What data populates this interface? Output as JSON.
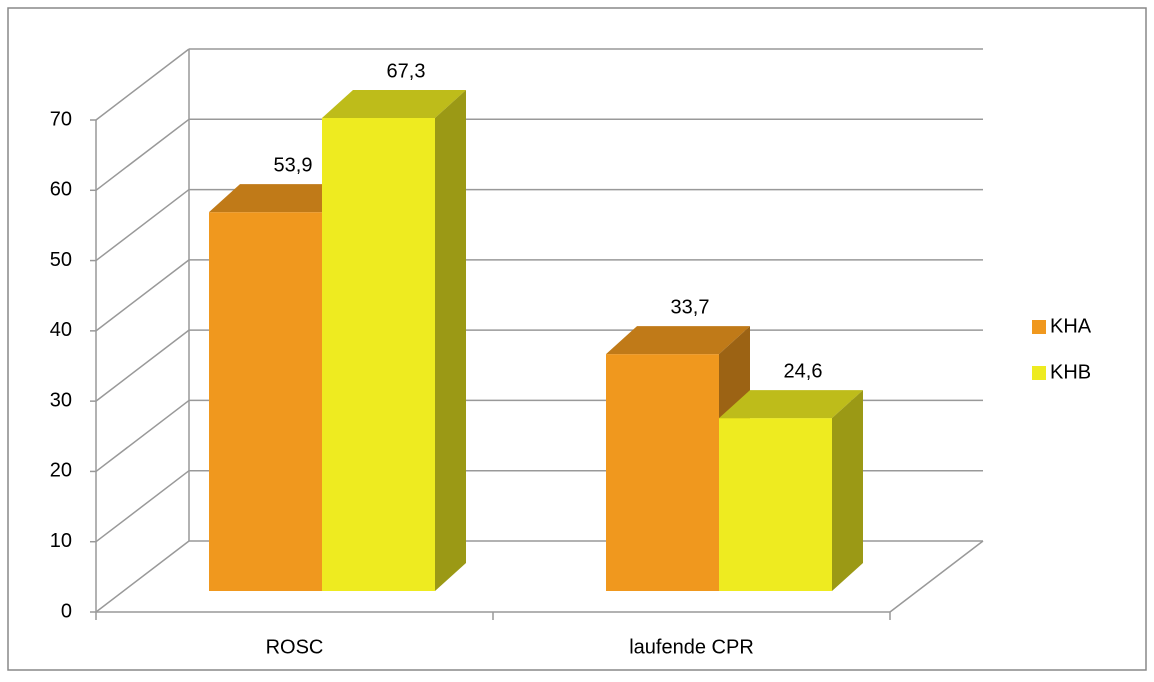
{
  "chart_data": {
    "type": "bar3d",
    "categories": [
      "ROSC",
      "laufende CPR"
    ],
    "series": [
      {
        "name": "KHA",
        "color": "#F0981E",
        "values": [
          53.9,
          33.7
        ],
        "value_labels": [
          "53,9",
          "33,7"
        ]
      },
      {
        "name": "KHB",
        "color": "#EEEB20",
        "values": [
          67.3,
          24.6
        ],
        "value_labels": [
          "67,3",
          "24,6"
        ]
      }
    ],
    "ylim": [
      0,
      70
    ],
    "yticks": [
      0,
      10,
      20,
      30,
      40,
      50,
      60,
      70
    ],
    "grid": true,
    "legend": "right"
  }
}
